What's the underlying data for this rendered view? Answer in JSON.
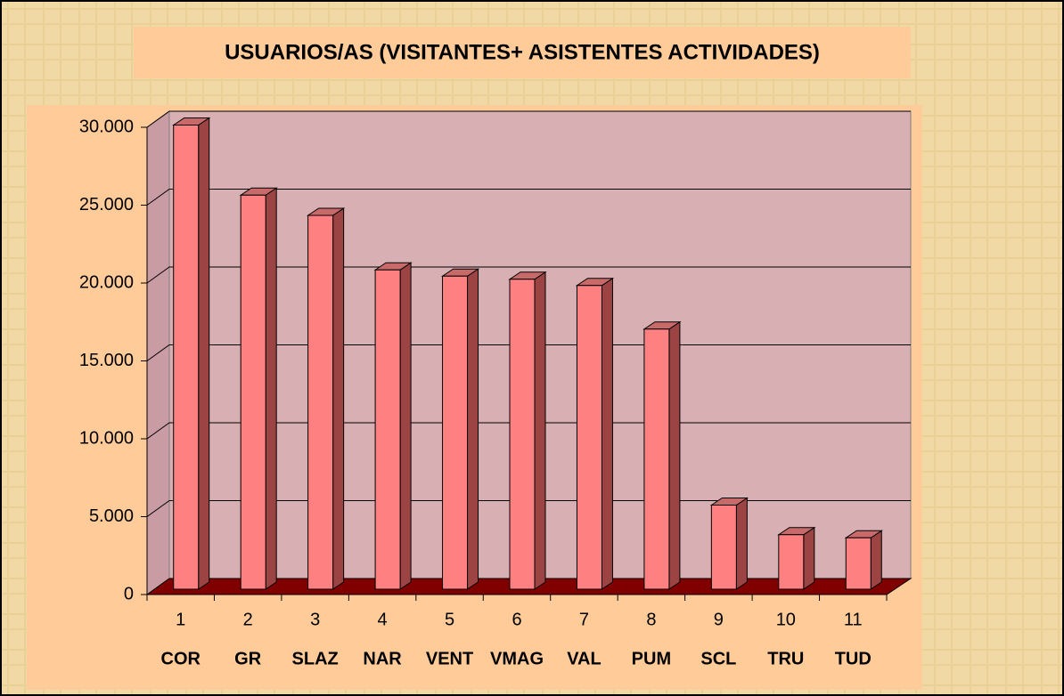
{
  "chart_data": {
    "type": "bar3d",
    "title": "USUARIOS/AS  (VISITANTES+ ASISTENTES ACTIVIDADES)",
    "categories": [
      "1",
      "2",
      "3",
      "4",
      "5",
      "6",
      "7",
      "8",
      "9",
      "10",
      "11"
    ],
    "category_labels": [
      "COR",
      "GR",
      "SLAZ",
      "NAR",
      "VENT",
      "VMAG",
      "VAL",
      "PUM",
      "SCL",
      "TRU",
      "TUD"
    ],
    "values": [
      29800,
      25300,
      24000,
      20500,
      20100,
      19900,
      19500,
      16700,
      5400,
      3500,
      3300
    ],
    "color": "#ff8080",
    "ylim": [
      0,
      30000
    ],
    "yticks": [
      0,
      {
        "value": 5000,
        "label": "5.000"
      },
      {
        "value": 10000,
        "label": "10.000"
      },
      {
        "value": 15000,
        "label": "15.000"
      },
      {
        "value": 20000,
        "label": "20.000"
      },
      {
        "value": 25000,
        "label": "25.000"
      },
      {
        "value": 30000,
        "label": "30.000"
      }
    ],
    "grid": true
  }
}
